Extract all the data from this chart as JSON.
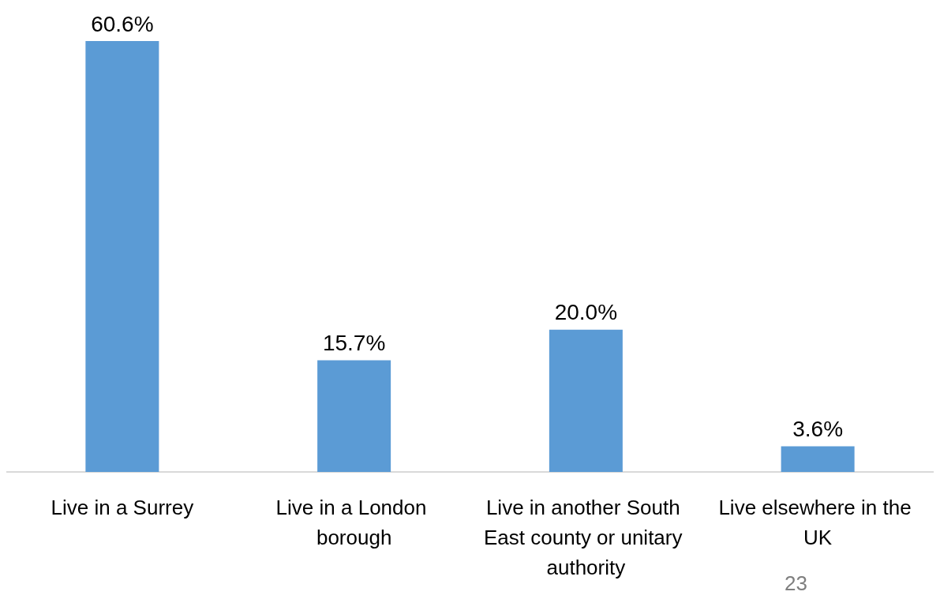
{
  "chart_data": {
    "type": "bar",
    "categories": [
      "Live in a Surrey",
      "Live in a London borough",
      "Live in another South East county or unitary authority",
      "Live elsewhere in the UK"
    ],
    "values": [
      60.6,
      15.7,
      20.0,
      3.6
    ],
    "value_labels": [
      "60.6%",
      "15.7%",
      "20.0%",
      "3.6%"
    ],
    "color": "#5b9bd5",
    "annotations": [
      "23"
    ]
  }
}
